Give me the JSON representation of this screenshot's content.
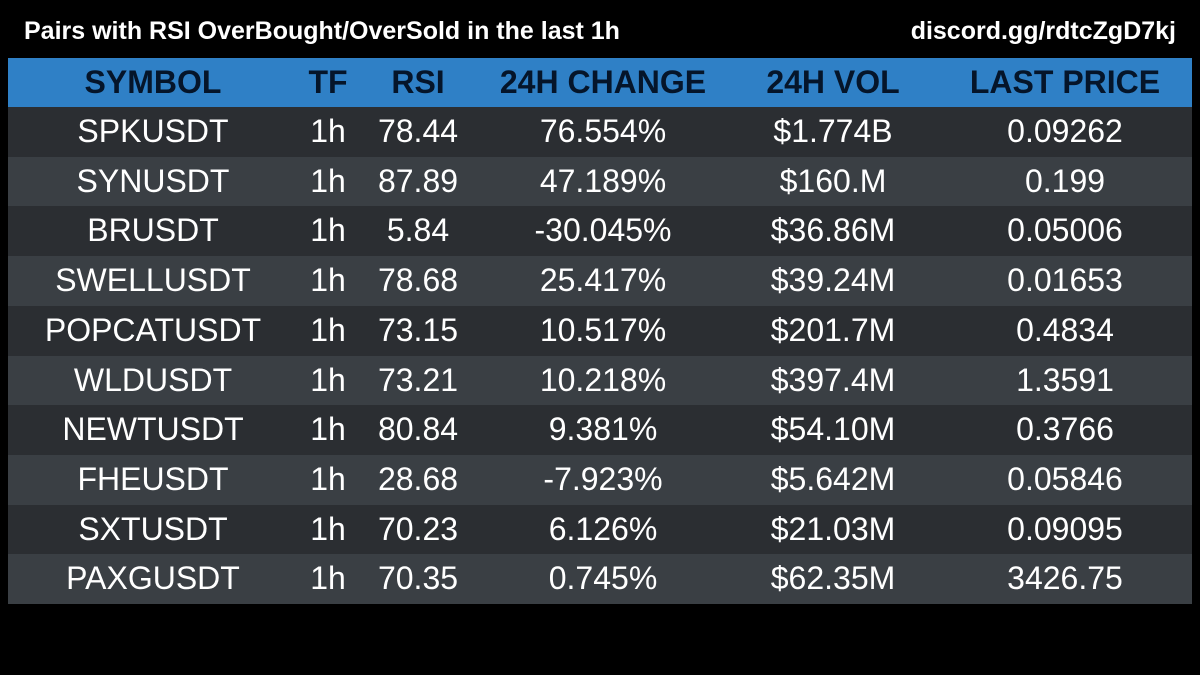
{
  "header": {
    "title": "Pairs with RSI OverBought/OverSold in the last 1h",
    "discord": "discord.gg/rdtcZgD7kj"
  },
  "colors": {
    "header_bg": "#2f80c6",
    "header_text": "#05152a",
    "row_dark": "#2b2e32",
    "row_light": "#3a3f44",
    "page_bg": "#000000",
    "text": "#ffffff"
  },
  "table": {
    "columns": [
      "SYMBOL",
      "TF",
      "RSI",
      "24H CHANGE",
      "24H VOL",
      "LAST PRICE"
    ],
    "rows": [
      [
        "SPKUSDT",
        "1h",
        "78.44",
        "76.554%",
        "$1.774B",
        "0.09262"
      ],
      [
        "SYNUSDT",
        "1h",
        "87.89",
        "47.189%",
        "$160.M",
        "0.199"
      ],
      [
        "BRUSDT",
        "1h",
        "5.84",
        "-30.045%",
        "$36.86M",
        "0.05006"
      ],
      [
        "SWELLUSDT",
        "1h",
        "78.68",
        "25.417%",
        "$39.24M",
        "0.01653"
      ],
      [
        "POPCATUSDT",
        "1h",
        "73.15",
        "10.517%",
        "$201.7M",
        "0.4834"
      ],
      [
        "WLDUSDT",
        "1h",
        "73.21",
        "10.218%",
        "$397.4M",
        "1.3591"
      ],
      [
        "NEWTUSDT",
        "1h",
        "80.84",
        "9.381%",
        "$54.10M",
        "0.3766"
      ],
      [
        "FHEUSDT",
        "1h",
        "28.68",
        "-7.923%",
        "$5.642M",
        "0.05846"
      ],
      [
        "SXTUSDT",
        "1h",
        "70.23",
        "6.126%",
        "$21.03M",
        "0.09095"
      ],
      [
        "PAXGUSDT",
        "1h",
        "70.35",
        "0.745%",
        "$62.35M",
        "3426.75"
      ]
    ]
  }
}
